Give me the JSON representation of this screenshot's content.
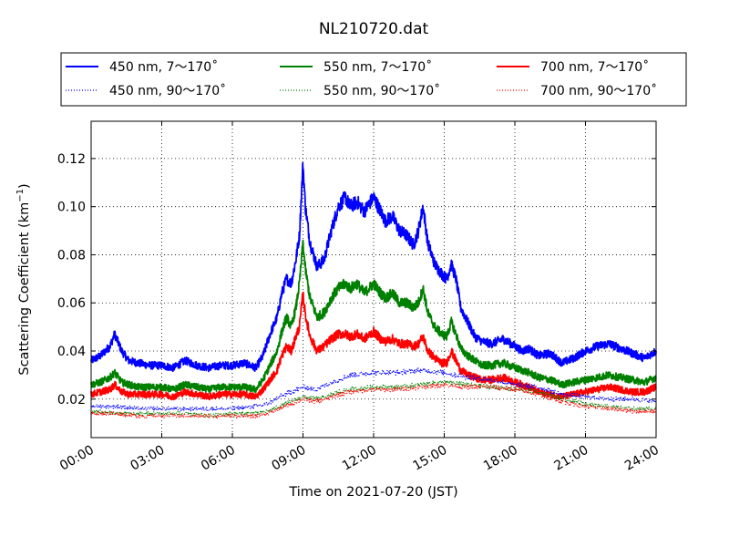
{
  "chart_data": {
    "type": "line",
    "title": "NL210720.dat",
    "xlabel": "Time on 2021-07-20 (JST)",
    "ylabel": "Scattering Coefficient (km",
    "ylabel_sup": "−1",
    "ylabel_end": ")",
    "xlim": [
      0,
      24
    ],
    "ylim": [
      0.004,
      0.1355
    ],
    "x_ticks": [
      0,
      3,
      6,
      9,
      12,
      15,
      18,
      21,
      24
    ],
    "x_tick_labels": [
      "00:00",
      "03:00",
      "06:00",
      "09:00",
      "12:00",
      "15:00",
      "18:00",
      "21:00",
      "24:00"
    ],
    "y_ticks": [
      0.02,
      0.04,
      0.06,
      0.08,
      0.1,
      0.12
    ],
    "y_tick_labels": [
      "0.02",
      "0.04",
      "0.06",
      "0.08",
      "0.10",
      "0.12"
    ],
    "grid": true,
    "legend_position": "top, above plot",
    "series": [
      {
        "name": "450 nm, 7～170˚",
        "color": "#0000ff",
        "style": "solid",
        "x": [
          0,
          0.4,
          0.8,
          1.0,
          1.3,
          1.6,
          2.0,
          2.5,
          3.0,
          3.5,
          4.0,
          4.5,
          5.0,
          5.5,
          6.0,
          6.5,
          7.0,
          7.3,
          7.6,
          7.9,
          8.1,
          8.3,
          8.5,
          8.7,
          8.85,
          9.0,
          9.1,
          9.3,
          9.6,
          9.9,
          10.2,
          10.5,
          10.8,
          11.0,
          11.3,
          11.6,
          12.0,
          12.3,
          12.5,
          12.8,
          13.1,
          13.4,
          13.7,
          13.9,
          14.1,
          14.3,
          14.6,
          14.9,
          15.1,
          15.3,
          15.5,
          15.7,
          16.0,
          16.3,
          16.6,
          17.0,
          17.5,
          18.0,
          18.3,
          18.6,
          19.0,
          19.5,
          20.0,
          20.5,
          21.0,
          21.5,
          22.0,
          22.5,
          23.0,
          23.5,
          24.0
        ],
        "y": [
          0.036,
          0.038,
          0.042,
          0.047,
          0.04,
          0.036,
          0.035,
          0.034,
          0.034,
          0.033,
          0.036,
          0.034,
          0.033,
          0.034,
          0.034,
          0.035,
          0.033,
          0.038,
          0.047,
          0.054,
          0.064,
          0.07,
          0.068,
          0.078,
          0.088,
          0.118,
          0.1,
          0.085,
          0.075,
          0.078,
          0.09,
          0.1,
          0.104,
          0.1,
          0.102,
          0.098,
          0.104,
          0.098,
          0.094,
          0.096,
          0.09,
          0.088,
          0.084,
          0.09,
          0.1,
          0.085,
          0.076,
          0.072,
          0.07,
          0.076,
          0.07,
          0.058,
          0.052,
          0.046,
          0.044,
          0.043,
          0.045,
          0.042,
          0.04,
          0.041,
          0.038,
          0.039,
          0.035,
          0.037,
          0.04,
          0.042,
          0.043,
          0.041,
          0.039,
          0.037,
          0.04
        ]
      },
      {
        "name": "550 nm, 7～170˚",
        "color": "#008000",
        "style": "solid",
        "x": [
          0,
          0.4,
          0.8,
          1.0,
          1.3,
          1.6,
          2.0,
          2.5,
          3.0,
          3.5,
          4.0,
          4.5,
          5.0,
          5.5,
          6.0,
          6.5,
          7.0,
          7.3,
          7.6,
          7.9,
          8.1,
          8.3,
          8.5,
          8.7,
          8.85,
          9.0,
          9.1,
          9.3,
          9.6,
          9.9,
          10.2,
          10.5,
          10.8,
          11.0,
          11.3,
          11.6,
          12.0,
          12.3,
          12.5,
          12.8,
          13.1,
          13.4,
          13.7,
          13.9,
          14.1,
          14.3,
          14.6,
          14.9,
          15.1,
          15.3,
          15.5,
          15.7,
          16.0,
          16.3,
          16.6,
          17.0,
          17.5,
          18.0,
          18.3,
          18.6,
          19.0,
          19.5,
          20.0,
          20.5,
          21.0,
          21.5,
          22.0,
          22.5,
          23.0,
          23.5,
          24.0
        ],
        "y": [
          0.026,
          0.027,
          0.029,
          0.031,
          0.027,
          0.026,
          0.025,
          0.025,
          0.025,
          0.024,
          0.026,
          0.025,
          0.024,
          0.025,
          0.025,
          0.025,
          0.024,
          0.028,
          0.034,
          0.04,
          0.048,
          0.054,
          0.05,
          0.058,
          0.068,
          0.085,
          0.074,
          0.062,
          0.054,
          0.056,
          0.062,
          0.066,
          0.068,
          0.066,
          0.068,
          0.064,
          0.068,
          0.064,
          0.062,
          0.064,
          0.06,
          0.06,
          0.058,
          0.06,
          0.066,
          0.056,
          0.05,
          0.047,
          0.046,
          0.052,
          0.047,
          0.041,
          0.038,
          0.036,
          0.034,
          0.034,
          0.035,
          0.033,
          0.032,
          0.031,
          0.029,
          0.028,
          0.026,
          0.027,
          0.028,
          0.029,
          0.03,
          0.029,
          0.028,
          0.027,
          0.029
        ]
      },
      {
        "name": "700 nm, 7～170˚",
        "color": "#ff0000",
        "style": "solid",
        "x": [
          0,
          0.4,
          0.8,
          1.0,
          1.3,
          1.6,
          2.0,
          2.5,
          3.0,
          3.5,
          4.0,
          4.5,
          5.0,
          5.5,
          6.0,
          6.5,
          7.0,
          7.3,
          7.6,
          7.9,
          8.1,
          8.3,
          8.5,
          8.7,
          8.85,
          9.0,
          9.1,
          9.3,
          9.6,
          9.9,
          10.2,
          10.5,
          10.8,
          11.0,
          11.3,
          11.6,
          12.0,
          12.3,
          12.5,
          12.8,
          13.1,
          13.4,
          13.7,
          13.9,
          14.1,
          14.3,
          14.6,
          14.9,
          15.1,
          15.3,
          15.5,
          15.7,
          16.0,
          16.3,
          16.6,
          17.0,
          17.5,
          18.0,
          18.3,
          18.6,
          19.0,
          19.5,
          20.0,
          20.5,
          21.0,
          21.5,
          22.0,
          22.5,
          23.0,
          23.5,
          24.0
        ],
        "y": [
          0.022,
          0.023,
          0.024,
          0.026,
          0.023,
          0.022,
          0.022,
          0.022,
          0.022,
          0.021,
          0.023,
          0.022,
          0.021,
          0.022,
          0.022,
          0.022,
          0.021,
          0.024,
          0.028,
          0.032,
          0.038,
          0.042,
          0.04,
          0.046,
          0.05,
          0.064,
          0.055,
          0.046,
          0.04,
          0.042,
          0.045,
          0.047,
          0.047,
          0.046,
          0.047,
          0.045,
          0.048,
          0.045,
          0.044,
          0.045,
          0.043,
          0.043,
          0.042,
          0.043,
          0.046,
          0.04,
          0.037,
          0.035,
          0.035,
          0.04,
          0.036,
          0.032,
          0.03,
          0.029,
          0.028,
          0.028,
          0.029,
          0.027,
          0.026,
          0.025,
          0.023,
          0.022,
          0.021,
          0.022,
          0.023,
          0.024,
          0.025,
          0.024,
          0.023,
          0.023,
          0.025
        ]
      },
      {
        "name": "450 nm, 90～170˚",
        "color": "#0000ff",
        "style": "dotted",
        "x": [
          0,
          1,
          2,
          3,
          4,
          5,
          6,
          7,
          7.5,
          8,
          8.5,
          9,
          9.5,
          10,
          10.5,
          11,
          12,
          13,
          14,
          15,
          16,
          17,
          18,
          19,
          20,
          21,
          22,
          23,
          24
        ],
        "y": [
          0.017,
          0.017,
          0.016,
          0.016,
          0.016,
          0.016,
          0.016,
          0.017,
          0.018,
          0.021,
          0.023,
          0.025,
          0.024,
          0.026,
          0.028,
          0.03,
          0.031,
          0.031,
          0.032,
          0.031,
          0.029,
          0.028,
          0.026,
          0.025,
          0.022,
          0.021,
          0.02,
          0.02,
          0.019
        ]
      },
      {
        "name": "550 nm, 90～170˚",
        "color": "#008000",
        "style": "dotted",
        "x": [
          0,
          1,
          2,
          3,
          4,
          5,
          6,
          7,
          7.5,
          8,
          8.5,
          9,
          9.5,
          10,
          10.5,
          11,
          12,
          13,
          14,
          15,
          16,
          17,
          18,
          19,
          20,
          21,
          22,
          23,
          24
        ],
        "y": [
          0.015,
          0.014,
          0.014,
          0.014,
          0.014,
          0.013,
          0.014,
          0.014,
          0.015,
          0.017,
          0.019,
          0.021,
          0.02,
          0.021,
          0.023,
          0.024,
          0.025,
          0.025,
          0.026,
          0.027,
          0.026,
          0.025,
          0.024,
          0.023,
          0.02,
          0.018,
          0.017,
          0.016,
          0.016
        ]
      },
      {
        "name": "700 nm, 90～170˚",
        "color": "#ff0000",
        "style": "dotted",
        "x": [
          0,
          1,
          2,
          3,
          4,
          5,
          6,
          7,
          7.5,
          8,
          8.5,
          9,
          9.5,
          10,
          10.5,
          11,
          12,
          13,
          14,
          15,
          16,
          17,
          18,
          19,
          20,
          21,
          22,
          23,
          24
        ],
        "y": [
          0.014,
          0.014,
          0.013,
          0.013,
          0.013,
          0.013,
          0.013,
          0.013,
          0.014,
          0.016,
          0.018,
          0.02,
          0.019,
          0.02,
          0.022,
          0.023,
          0.024,
          0.024,
          0.025,
          0.026,
          0.025,
          0.025,
          0.024,
          0.022,
          0.019,
          0.017,
          0.016,
          0.015,
          0.015
        ]
      }
    ]
  }
}
